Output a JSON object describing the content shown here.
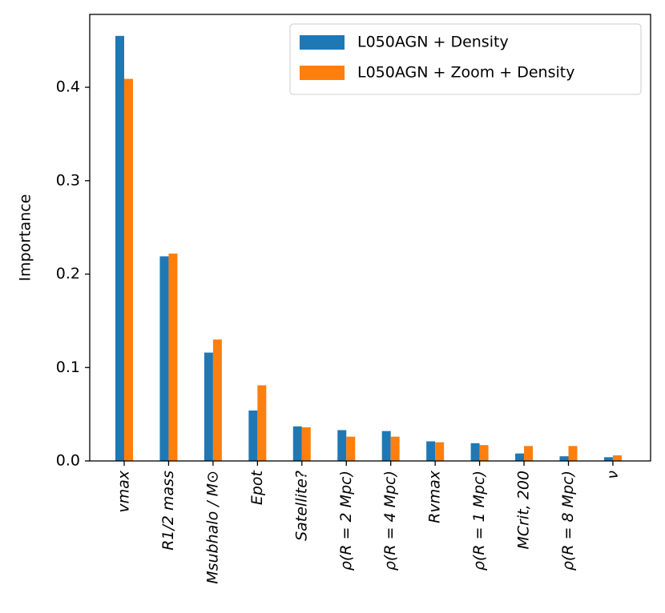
{
  "chart_data": {
    "type": "bar",
    "y_label": "Importance",
    "categories": [
      "vmax",
      "R1/2 mass",
      "Msubhalo / M⊙",
      "Epot",
      "Satellite?",
      "ρ(R = 2 Mpc)",
      "ρ(R = 4 Mpc)",
      "Rvmax",
      "ρ(R = 1 Mpc)",
      "MCrit, 200",
      "ρ(R = 8 Mpc)",
      "ν"
    ],
    "series": [
      {
        "name": "L050AGN + Density",
        "color": "#1f77b4",
        "values": [
          0.455,
          0.219,
          0.116,
          0.054,
          0.037,
          0.033,
          0.032,
          0.021,
          0.019,
          0.008,
          0.005,
          0.004
        ]
      },
      {
        "name": "L050AGN + Zoom + Density",
        "color": "#ff7f0e",
        "values": [
          0.409,
          0.222,
          0.13,
          0.081,
          0.036,
          0.026,
          0.026,
          0.02,
          0.017,
          0.016,
          0.016,
          0.006
        ]
      }
    ],
    "ylim": [
      0,
      0.478
    ],
    "yticks": [
      {
        "value": 0,
        "label": "0.0"
      },
      0.1,
      0.2,
      0.3,
      0.4
    ],
    "legend": "upper right"
  }
}
